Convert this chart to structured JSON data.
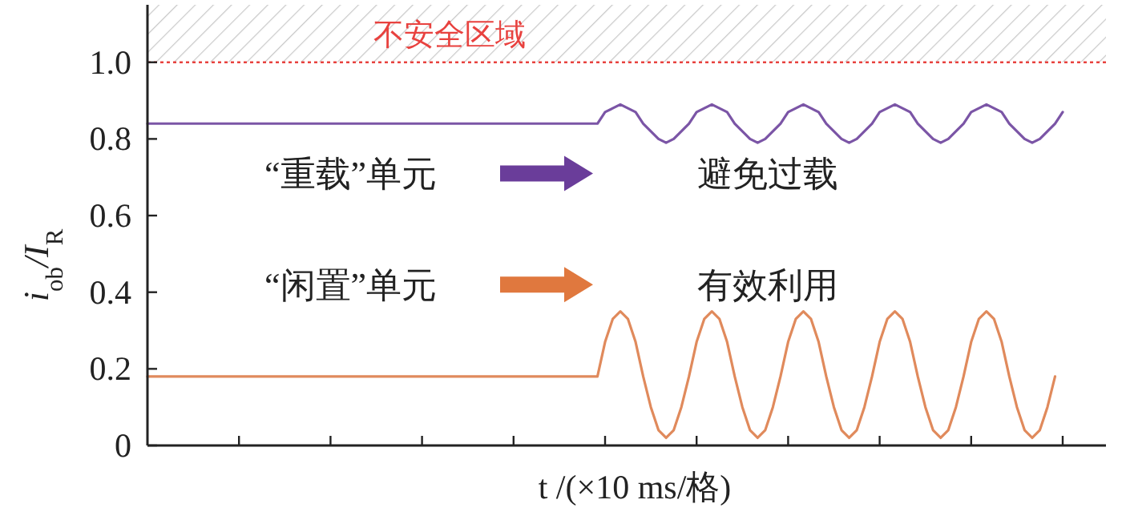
{
  "chart_data": {
    "type": "line",
    "xlabel": "t /(×10 ms/格)",
    "ylabel": "i$_{ob}$/I$_{R}$",
    "ylim": [
      0,
      1.15
    ],
    "yticks": [
      0,
      0.2,
      0.4,
      0.6,
      0.8,
      {
        "value": 1,
        "label": "1.0"
      }
    ],
    "categories": [
      null,
      null,
      null,
      null,
      null,
      null,
      null,
      null,
      null,
      null,
      null,
      null,
      null,
      null,
      null,
      null,
      null,
      null,
      null,
      null,
      null,
      null,
      null,
      null,
      null,
      null,
      null,
      null,
      null,
      null,
      null,
      null,
      null,
      null,
      null,
      null,
      null,
      null,
      null,
      null,
      null,
      null,
      null,
      null,
      null,
      null,
      null,
      null,
      null,
      null,
      null,
      null,
      null,
      null,
      null,
      null,
      null,
      null,
      null,
      null,
      null,
      null,
      null,
      null,
      null,
      null,
      null,
      null,
      null,
      null,
      null,
      null,
      null,
      null,
      null,
      null,
      null,
      null,
      null,
      null,
      null,
      null,
      null,
      null,
      null,
      null,
      null,
      null,
      null,
      null,
      null,
      null,
      null,
      null,
      null,
      null,
      null,
      null,
      null,
      null,
      null,
      null,
      null,
      null,
      null,
      null,
      null,
      null,
      null,
      null,
      null,
      null,
      null,
      null,
      null,
      null,
      null,
      null,
      null,
      null,
      null
    ],
    "series": [
      {
        "color": "#7b55a6",
        "values": [
          0.84,
          0.84,
          0.84,
          0.84,
          0.84,
          0.84,
          0.84,
          0.84,
          0.84,
          0.84,
          0.84,
          0.84,
          0.84,
          0.84,
          0.84,
          0.84,
          0.84,
          0.84,
          0.84,
          0.84,
          0.84,
          0.84,
          0.84,
          0.84,
          0.84,
          0.84,
          0.84,
          0.84,
          0.84,
          0.84,
          0.84,
          0.84,
          0.84,
          0.84,
          0.84,
          0.84,
          0.84,
          0.84,
          0.84,
          0.84,
          0.84,
          0.84,
          0.84,
          0.84,
          0.84,
          0.84,
          0.84,
          0.84,
          0.84,
          0.84,
          0.84,
          0.84,
          0.84,
          0.84,
          0.84,
          0.84,
          0.84,
          0.84,
          0.84,
          0.84,
          0.87,
          0.88,
          0.89,
          0.88,
          0.87,
          0.84,
          0.82,
          0.8,
          0.79,
          0.8,
          0.82,
          0.84,
          0.87,
          0.88,
          0.89,
          0.88,
          0.87,
          0.84,
          0.82,
          0.8,
          0.79,
          0.8,
          0.82,
          0.84,
          0.87,
          0.88,
          0.89,
          0.88,
          0.87,
          0.84,
          0.82,
          0.8,
          0.79,
          0.8,
          0.82,
          0.84,
          0.87,
          0.88,
          0.89,
          0.88,
          0.87,
          0.84,
          0.82,
          0.8,
          0.79,
          0.8,
          0.82,
          0.84,
          0.87,
          0.88,
          0.89,
          0.88,
          0.87,
          0.84,
          0.82,
          0.8,
          0.79,
          0.8,
          0.82,
          0.84,
          0.87
        ]
      },
      {
        "color": "#e08a5c",
        "values": [
          0.18,
          0.18,
          0.18,
          0.18,
          0.18,
          0.18,
          0.18,
          0.18,
          0.18,
          0.18,
          0.18,
          0.18,
          0.18,
          0.18,
          0.18,
          0.18,
          0.18,
          0.18,
          0.18,
          0.18,
          0.18,
          0.18,
          0.18,
          0.18,
          0.18,
          0.18,
          0.18,
          0.18,
          0.18,
          0.18,
          0.18,
          0.18,
          0.18,
          0.18,
          0.18,
          0.18,
          0.18,
          0.18,
          0.18,
          0.18,
          0.18,
          0.18,
          0.18,
          0.18,
          0.18,
          0.18,
          0.18,
          0.18,
          0.18,
          0.18,
          0.18,
          0.18,
          0.18,
          0.18,
          0.18,
          0.18,
          0.18,
          0.18,
          0.18,
          0.18,
          0.27,
          0.33,
          0.35,
          0.33,
          0.27,
          0.18,
          0.1,
          0.04,
          0.02,
          0.04,
          0.1,
          0.18,
          0.27,
          0.33,
          0.35,
          0.33,
          0.27,
          0.18,
          0.1,
          0.04,
          0.02,
          0.04,
          0.1,
          0.18,
          0.27,
          0.33,
          0.35,
          0.33,
          0.27,
          0.18,
          0.1,
          0.04,
          0.02,
          0.04,
          0.1,
          0.18,
          0.27,
          0.33,
          0.35,
          0.33,
          0.27,
          0.18,
          0.1,
          0.04,
          0.02,
          0.04,
          0.1,
          0.18,
          0.27,
          0.33,
          0.35,
          0.33,
          0.27,
          0.18,
          0.1,
          0.04,
          0.02,
          0.04,
          0.1,
          0.18,
          null
        ]
      }
    ],
    "ref_lines": [
      {
        "axis": "y",
        "value": 1.0,
        "color": "#e8423f",
        "line_style": "dotted"
      }
    ],
    "bands": [
      {
        "axis": "y",
        "from": 1.0,
        "to": 1.15,
        "label": "不安全区域",
        "color": "#e8423f"
      }
    ],
    "annotations": [
      "“重载”单元",
      "避免过载",
      "“闲置”单元",
      "有效利用"
    ],
    "grid": false
  }
}
